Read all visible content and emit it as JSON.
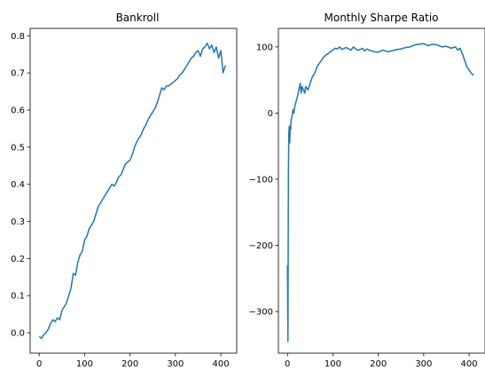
{
  "chart_data": [
    {
      "type": "line",
      "title": "Bankroll",
      "xlim": [
        -20,
        435
      ],
      "ylim": [
        -0.055,
        0.82
      ],
      "xticks": [
        0,
        100,
        200,
        300,
        400
      ],
      "xtick_labels": [
        "0",
        "100",
        "200",
        "300",
        "400"
      ],
      "yticks": [
        0.0,
        0.1,
        0.2,
        0.3,
        0.4,
        0.5,
        0.6,
        0.7,
        0.8
      ],
      "ytick_labels": [
        "0.0",
        "0.1",
        "0.2",
        "0.3",
        "0.4",
        "0.5",
        "0.6",
        "0.7",
        "0.8"
      ],
      "series": [
        {
          "color": "#1f77b4",
          "x": [
            0,
            5,
            10,
            15,
            20,
            25,
            30,
            35,
            40,
            45,
            50,
            55,
            60,
            65,
            70,
            75,
            80,
            85,
            90,
            95,
            100,
            105,
            110,
            115,
            120,
            125,
            130,
            135,
            140,
            145,
            150,
            155,
            160,
            165,
            170,
            175,
            180,
            185,
            190,
            195,
            200,
            205,
            210,
            215,
            220,
            225,
            230,
            235,
            240,
            245,
            250,
            255,
            260,
            265,
            270,
            275,
            280,
            285,
            290,
            295,
            300,
            305,
            310,
            315,
            320,
            325,
            330,
            335,
            340,
            345,
            350,
            355,
            360,
            365,
            370,
            375,
            380,
            385,
            390,
            395,
            400,
            405,
            410
          ],
          "y": [
            -0.01,
            -0.015,
            -0.005,
            0.0,
            0.01,
            0.025,
            0.035,
            0.03,
            0.04,
            0.035,
            0.06,
            0.07,
            0.08,
            0.1,
            0.12,
            0.16,
            0.155,
            0.19,
            0.21,
            0.22,
            0.25,
            0.26,
            0.28,
            0.29,
            0.3,
            0.32,
            0.34,
            0.35,
            0.36,
            0.37,
            0.38,
            0.39,
            0.4,
            0.395,
            0.405,
            0.42,
            0.425,
            0.44,
            0.455,
            0.46,
            0.465,
            0.48,
            0.5,
            0.515,
            0.525,
            0.535,
            0.55,
            0.56,
            0.575,
            0.585,
            0.595,
            0.605,
            0.62,
            0.64,
            0.66,
            0.655,
            0.665,
            0.665,
            0.67,
            0.675,
            0.68,
            0.685,
            0.695,
            0.7,
            0.71,
            0.72,
            0.73,
            0.74,
            0.745,
            0.755,
            0.76,
            0.745,
            0.765,
            0.77,
            0.78,
            0.765,
            0.775,
            0.755,
            0.77,
            0.74,
            0.76,
            0.7,
            0.72
          ]
        }
      ]
    },
    {
      "type": "line",
      "title": "Monthly Sharpe Ratio",
      "xlim": [
        -20,
        435
      ],
      "ylim": [
        -363,
        128
      ],
      "xticks": [
        0,
        100,
        200,
        300,
        400
      ],
      "xtick_labels": [
        "0",
        "100",
        "200",
        "300",
        "400"
      ],
      "yticks": [
        -300,
        -200,
        -100,
        0,
        100
      ],
      "ytick_labels": [
        "−300",
        "−200",
        "−100",
        "0",
        "100"
      ],
      "series": [
        {
          "color": "#1f77b4",
          "x": [
            0,
            1,
            2,
            3,
            4,
            5,
            6,
            7,
            8,
            10,
            12,
            14,
            16,
            18,
            20,
            22,
            25,
            28,
            30,
            32,
            35,
            38,
            40,
            45,
            50,
            55,
            60,
            65,
            70,
            75,
            80,
            85,
            90,
            95,
            100,
            105,
            110,
            115,
            120,
            125,
            130,
            135,
            140,
            145,
            150,
            155,
            160,
            165,
            170,
            175,
            180,
            190,
            200,
            210,
            220,
            230,
            240,
            250,
            260,
            270,
            280,
            290,
            300,
            310,
            320,
            330,
            340,
            350,
            360,
            370,
            375,
            380,
            385,
            390,
            395,
            400,
            405,
            410
          ],
          "y": [
            -230,
            -345,
            -90,
            -30,
            -20,
            -45,
            -20,
            -25,
            -10,
            -5,
            5,
            0,
            10,
            15,
            20,
            25,
            35,
            45,
            30,
            40,
            35,
            30,
            40,
            35,
            45,
            55,
            60,
            70,
            75,
            80,
            85,
            88,
            90,
            93,
            95,
            98,
            97,
            100,
            96,
            98,
            99,
            97,
            95,
            100,
            97,
            95,
            96,
            98,
            94,
            97,
            95,
            93,
            92,
            95,
            93,
            94,
            96,
            97,
            99,
            100,
            103,
            104,
            105,
            102,
            104,
            103,
            100,
            101,
            98,
            100,
            95,
            98,
            90,
            80,
            70,
            65,
            60,
            57
          ]
        }
      ]
    }
  ]
}
